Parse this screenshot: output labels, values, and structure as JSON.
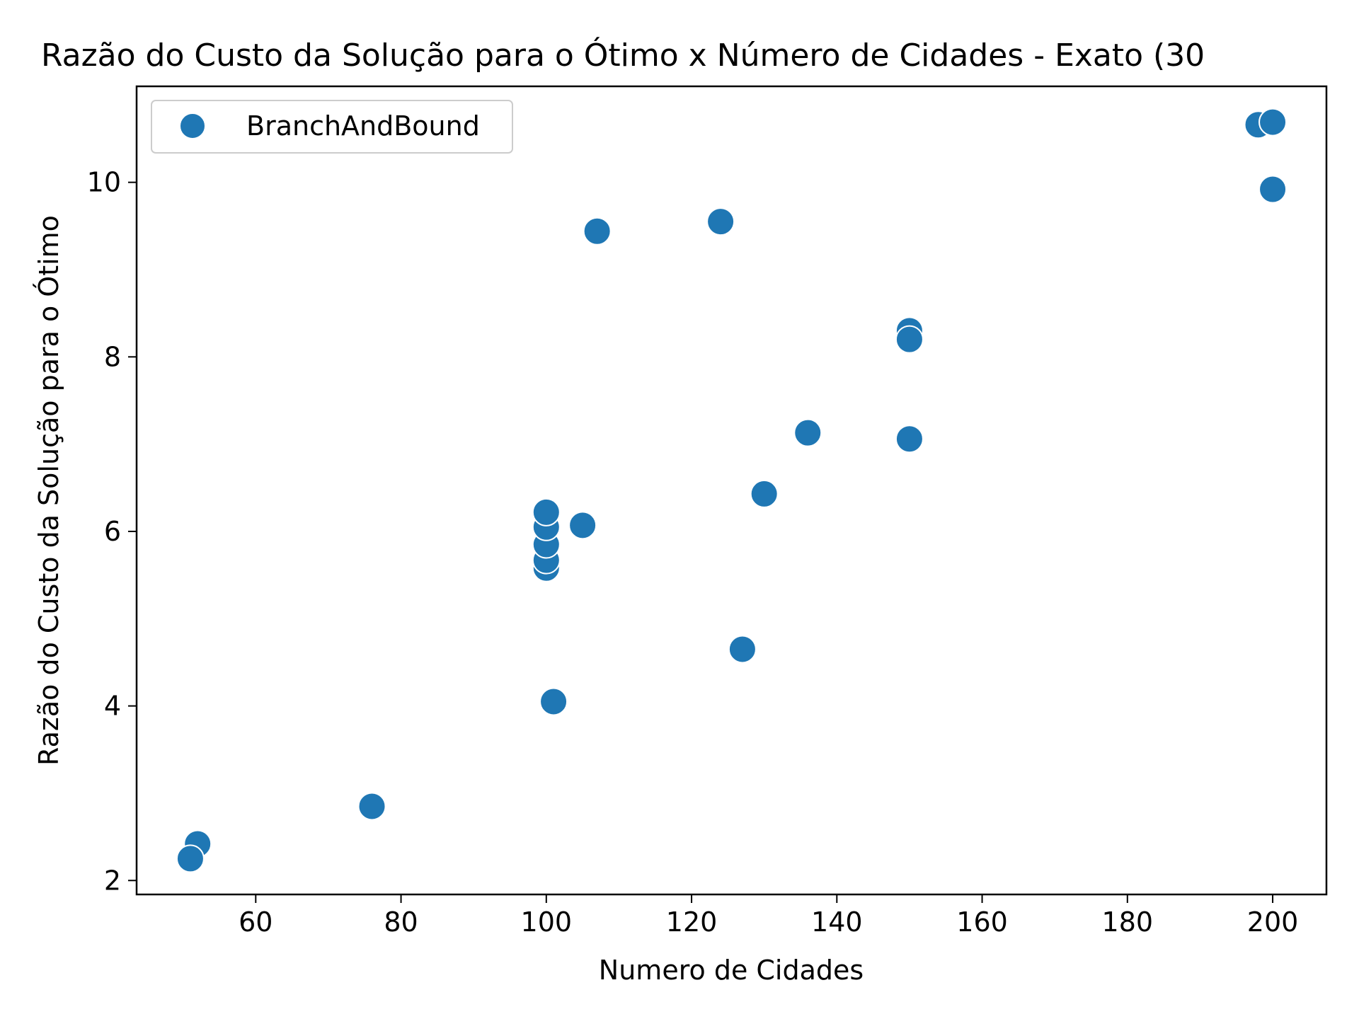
{
  "chart_data": {
    "type": "scatter",
    "title": "Razão do Custo da Solução para o Ótimo x Número de Cidades  - Exato (30",
    "xlabel": "Numero de Cidades",
    "ylabel": "Razão do Custo da Solução para o Ótimo",
    "xlim": [
      43.6,
      207.4
    ],
    "ylim": [
      1.84,
      11.1
    ],
    "xticks": [
      60,
      80,
      100,
      120,
      140,
      160,
      180,
      200
    ],
    "yticks": [
      2,
      4,
      6,
      8,
      10
    ],
    "xtick_labels": [
      "60",
      "80",
      "100",
      "120",
      "140",
      "160",
      "180",
      "200"
    ],
    "ytick_labels": [
      "2",
      "4",
      "6",
      "8",
      "10"
    ],
    "grid": false,
    "legend_position": "upper-left",
    "series": [
      {
        "name": "BranchAndBound",
        "color": "#1f77b4",
        "points": [
          {
            "x": 52,
            "y": 2.42
          },
          {
            "x": 51,
            "y": 2.25
          },
          {
            "x": 76,
            "y": 2.85
          },
          {
            "x": 101,
            "y": 4.05
          },
          {
            "x": 127,
            "y": 4.65
          },
          {
            "x": 100,
            "y": 5.58
          },
          {
            "x": 100,
            "y": 5.67
          },
          {
            "x": 100,
            "y": 5.85
          },
          {
            "x": 100,
            "y": 6.05
          },
          {
            "x": 100,
            "y": 6.22
          },
          {
            "x": 105,
            "y": 6.07
          },
          {
            "x": 130,
            "y": 6.43
          },
          {
            "x": 136,
            "y": 7.13
          },
          {
            "x": 150,
            "y": 7.06
          },
          {
            "x": 150,
            "y": 8.3
          },
          {
            "x": 150,
            "y": 8.2
          },
          {
            "x": 107,
            "y": 9.44
          },
          {
            "x": 124,
            "y": 9.55
          },
          {
            "x": 200,
            "y": 9.92
          },
          {
            "x": 198,
            "y": 10.66
          },
          {
            "x": 200,
            "y": 10.69
          }
        ]
      }
    ]
  }
}
